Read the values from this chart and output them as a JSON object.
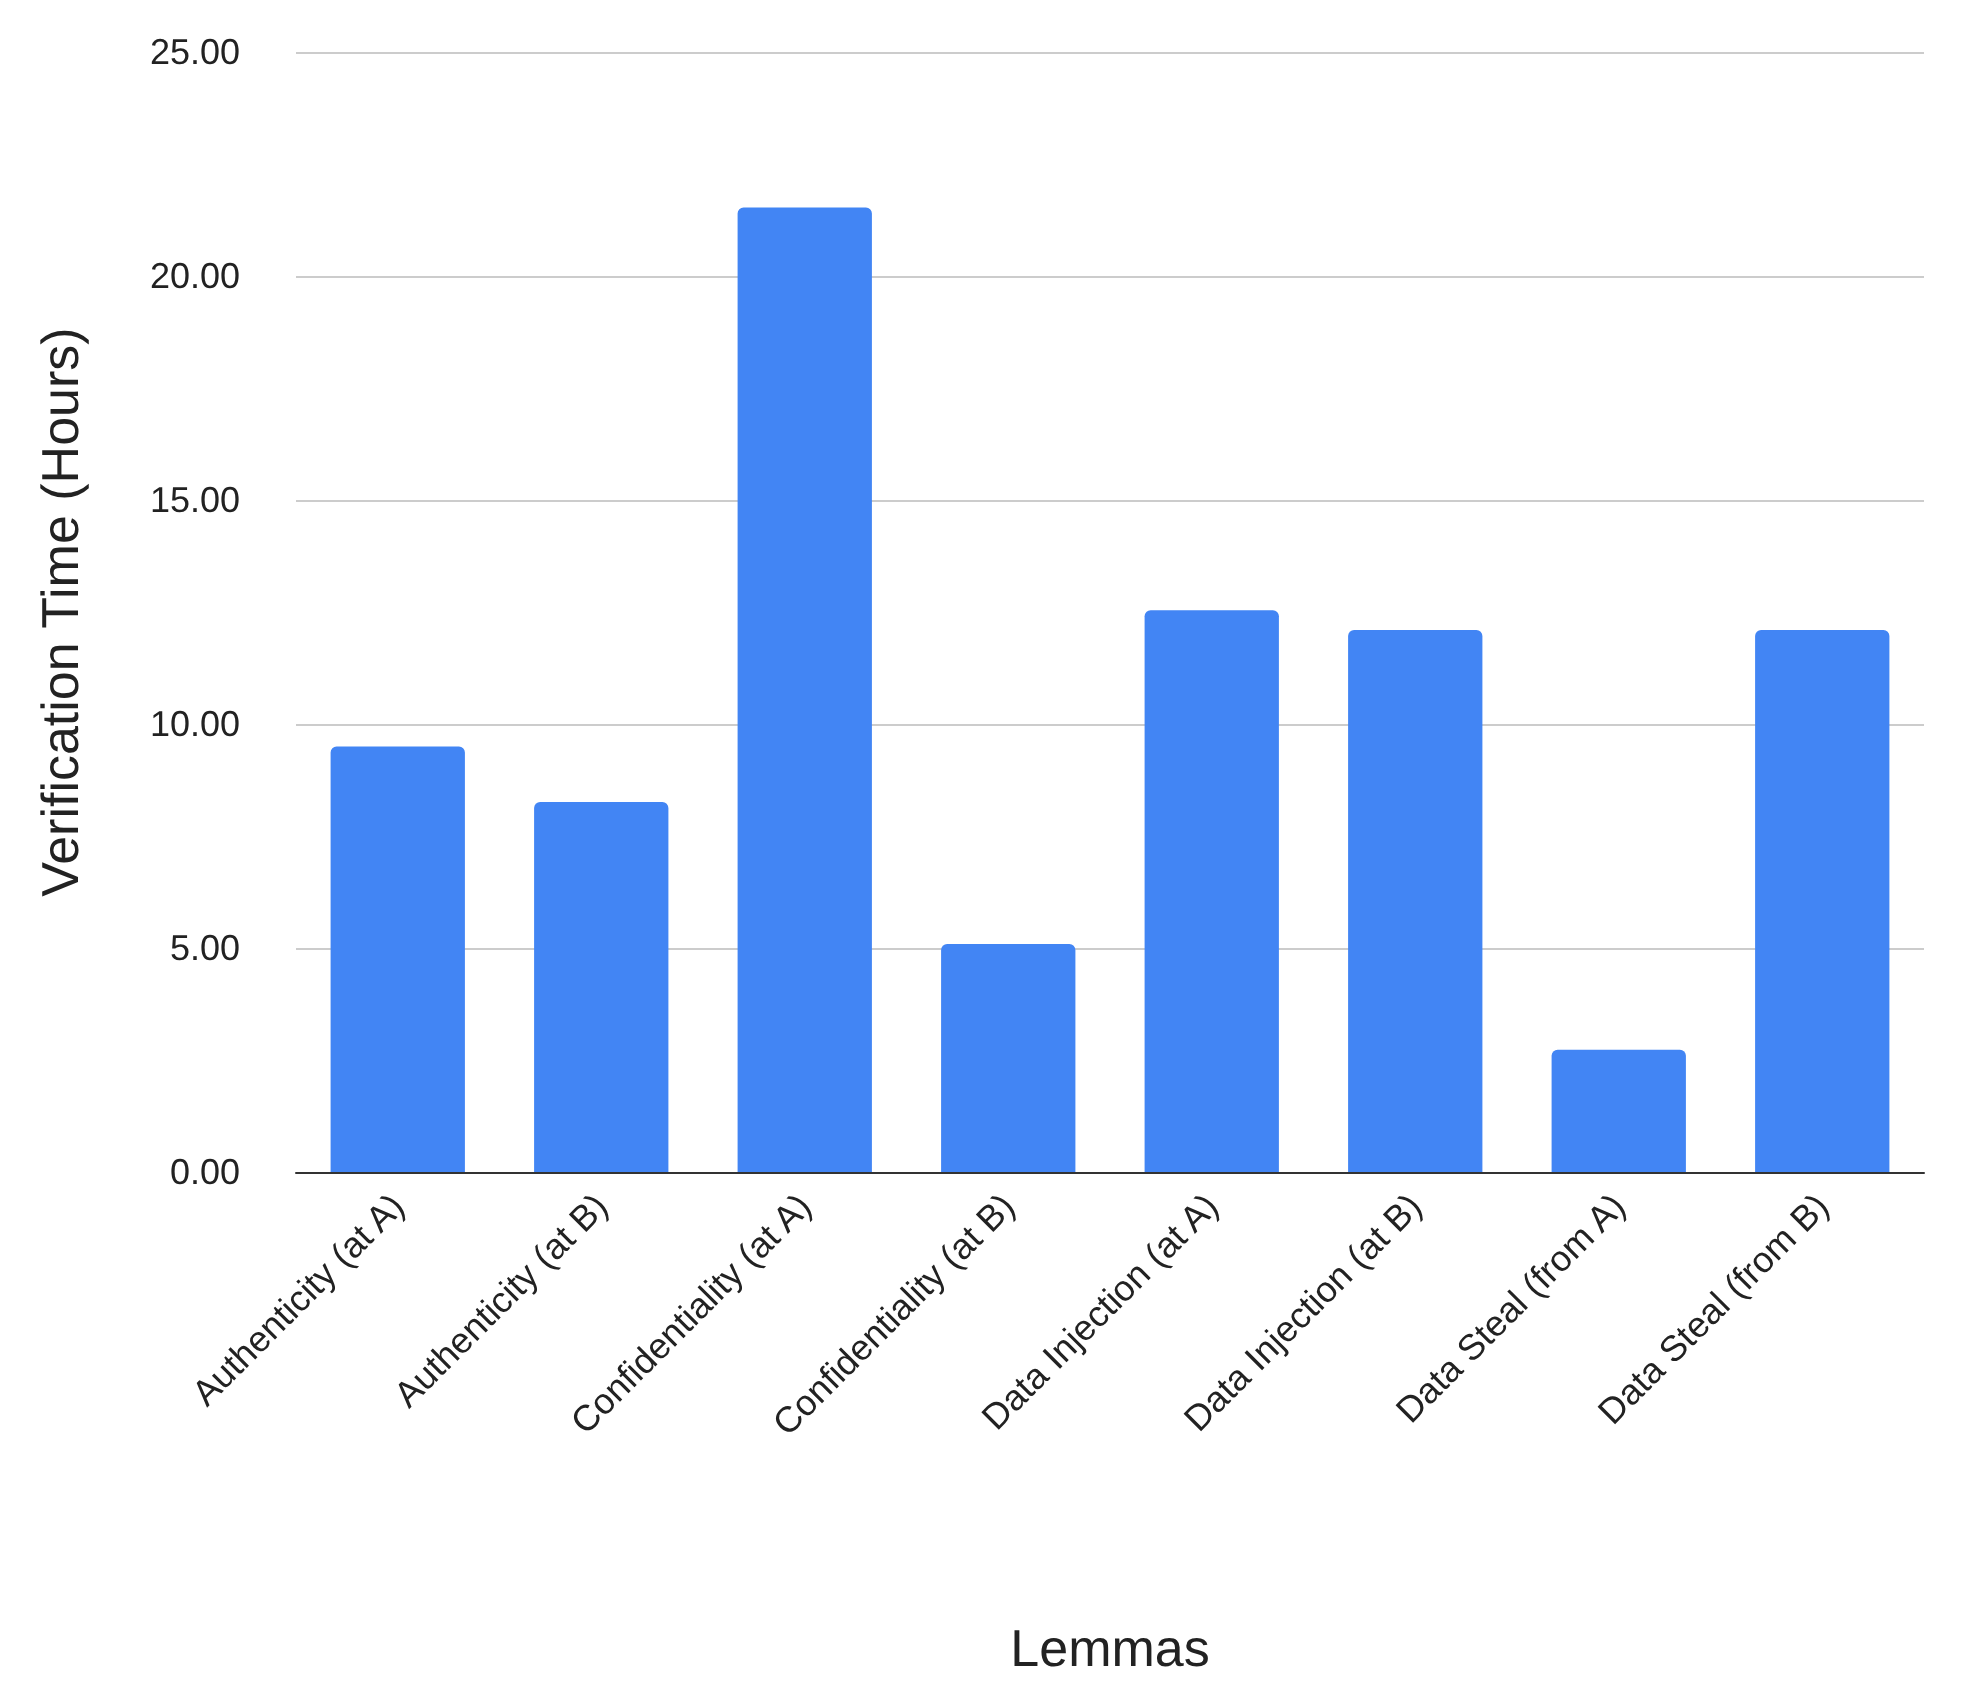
{
  "chart_data": {
    "type": "bar",
    "xlabel": "Lemmas",
    "ylabel": "Verification Time (Hours)",
    "categories": [
      "Authenticity (at A)",
      "Authenticity (at B)",
      "Confidentiality (at A)",
      "Confidentiality (at B)",
      "Data Injection (at A)",
      "Data Injection (at B)",
      "Data Steal (from A)",
      "Data Steal (from B)"
    ],
    "values": [
      9.5,
      8.26,
      21.53,
      5.09,
      12.54,
      12.1,
      2.73,
      12.1
    ],
    "color": "#4285f4",
    "ylim": [
      0,
      25
    ],
    "yticks": [
      {
        "value": 0,
        "label": "0.00"
      },
      {
        "value": 5,
        "label": "5.00"
      },
      {
        "value": 10,
        "label": "10.00"
      },
      {
        "value": 15,
        "label": "15.00"
      },
      {
        "value": 20,
        "label": "20.00"
      },
      {
        "value": 25,
        "label": "25.00"
      }
    ],
    "grid": "y"
  }
}
